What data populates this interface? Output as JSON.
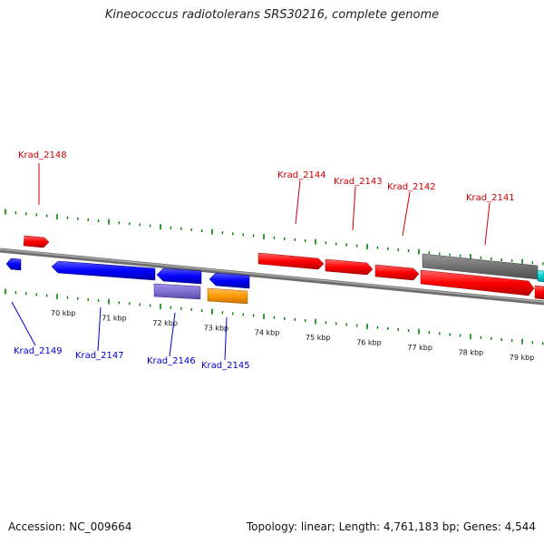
{
  "title": "Kineococcus radiotolerans SRS30216, complete genome",
  "footer": {
    "accession": "Accession: NC_009664",
    "summary": "Topology: linear; Length: 4,761,183 bp; Genes: 4,544"
  },
  "colors": {
    "forward_label": "#cc0000",
    "reverse_label": "#0000cc",
    "tick": "#008000",
    "backbone": "#808080"
  },
  "scale_labels": [
    "70 kbp",
    "71 kbp",
    "72 kbp",
    "73 kbp",
    "74 kbp",
    "75 kbp",
    "76 kbp",
    "77 kbp",
    "78 kbp",
    "79 kbp"
  ],
  "gene_labels": [
    {
      "name": "Krad_2148",
      "strand": "forward"
    },
    {
      "name": "Krad_2144",
      "strand": "forward"
    },
    {
      "name": "Krad_2143",
      "strand": "forward"
    },
    {
      "name": "Krad_2142",
      "strand": "forward"
    },
    {
      "name": "Krad_2141",
      "strand": "forward"
    },
    {
      "name": "Krad_2149",
      "strand": "reverse"
    },
    {
      "name": "Krad_2147",
      "strand": "reverse"
    },
    {
      "name": "Krad_2146",
      "strand": "reverse"
    },
    {
      "name": "Krad_2145",
      "strand": "reverse"
    }
  ]
}
